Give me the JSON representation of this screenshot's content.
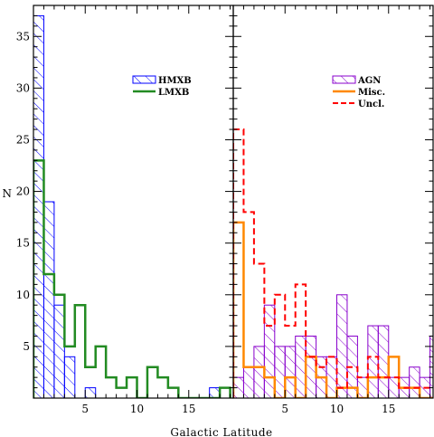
{
  "chart_data": {
    "type": "histogram",
    "xlabel": "Galactic Latitude",
    "ylabel": "N",
    "bin_width": 1,
    "x_start": 0,
    "ylim": [
      0,
      38
    ],
    "yticks": [
      5,
      10,
      15,
      20,
      25,
      30,
      35
    ],
    "panels": [
      {
        "xlim": [
          0,
          19.3
        ],
        "xticks": [
          5,
          10,
          15
        ],
        "legend_position": "top-right",
        "series": [
          {
            "name": "HMXB",
            "style": "hatched",
            "color": "#0000ff",
            "counts": [
              37,
              19,
              9,
              4,
              0,
              1,
              0,
              0,
              0,
              0,
              0,
              0,
              0,
              0,
              0,
              0,
              0,
              1,
              0
            ]
          },
          {
            "name": "LMXB",
            "style": "step",
            "color": "#228b22",
            "counts": [
              23,
              12,
              10,
              5,
              9,
              3,
              5,
              2,
              1,
              2,
              0,
              3,
              2,
              1,
              0,
              0,
              0,
              0,
              1
            ]
          }
        ]
      },
      {
        "xlim": [
          0,
          19.3
        ],
        "xticks": [
          5,
          10,
          15
        ],
        "legend_position": "top-right",
        "series": [
          {
            "name": "AGN",
            "style": "hatched",
            "color": "#8800cc",
            "counts": [
              2,
              3,
              5,
              9,
              5,
              5,
              6,
              6,
              4,
              4,
              10,
              6,
              2,
              7,
              7,
              2,
              2,
              3,
              2,
              6
            ]
          },
          {
            "name": "Misc.",
            "style": "step",
            "color": "#ff8800",
            "counts": [
              17,
              3,
              3,
              2,
              0,
              2,
              0,
              4,
              2,
              0,
              1,
              1,
              0,
              2,
              2,
              4,
              1,
              1,
              0,
              0
            ]
          },
          {
            "name": "Uncl.",
            "style": "dashed-step",
            "color": "#ff0000",
            "counts": [
              26,
              18,
              13,
              7,
              10,
              7,
              11,
              4,
              3,
              4,
              1,
              3,
              2,
              4,
              2,
              2,
              1,
              1,
              1,
              1
            ]
          }
        ]
      }
    ]
  }
}
